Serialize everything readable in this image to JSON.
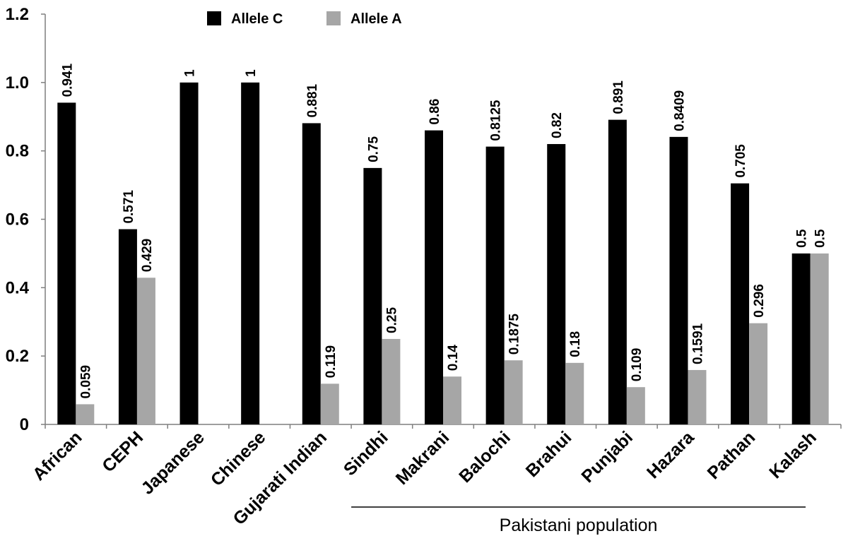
{
  "chart_data": {
    "type": "bar",
    "title": "",
    "xlabel": "",
    "ylabel": "",
    "ylim": [
      0,
      1.2
    ],
    "yticks": [
      "0",
      "0.2",
      "0.4",
      "0.6",
      "0.8",
      "1.0",
      "1.2"
    ],
    "categories": [
      "African",
      "CEPH",
      "Japanese",
      "Chinese",
      "Gujarati Indian",
      "Sindhi",
      "Makrani",
      "Balochi",
      "Brahui",
      "Punjabi",
      "Hazara",
      "Pathan",
      "Kalash"
    ],
    "series": [
      {
        "name": "Allele C",
        "color": "#000000",
        "values": [
          0.941,
          0.571,
          1,
          1,
          0.881,
          0.75,
          0.86,
          0.8125,
          0.82,
          0.891,
          0.8409,
          0.705,
          0.5
        ],
        "labels": [
          "0.941",
          "0.571",
          "1",
          "1",
          "0.881",
          "0.75",
          "0.86",
          "0.8125",
          "0.82",
          "0.891",
          "0.8409",
          "0.705",
          "0.5"
        ]
      },
      {
        "name": "Allele A",
        "color": "#a6a6a6",
        "values": [
          0.059,
          0.429,
          0,
          0,
          0.119,
          0.25,
          0.14,
          0.1875,
          0.18,
          0.109,
          0.1591,
          0.296,
          0.5
        ],
        "labels": [
          "0.059",
          "0.429",
          "",
          "",
          "0.119",
          "0.25",
          "0.14",
          "0.1875",
          "0.18",
          "0.109",
          "0.1591",
          "0.296",
          "0.5"
        ]
      }
    ],
    "legend_position": "top-center",
    "grid": false,
    "group_annotation": {
      "label": "Pakistani population",
      "from_category": "Sindhi",
      "to_category": "Kalash"
    }
  }
}
